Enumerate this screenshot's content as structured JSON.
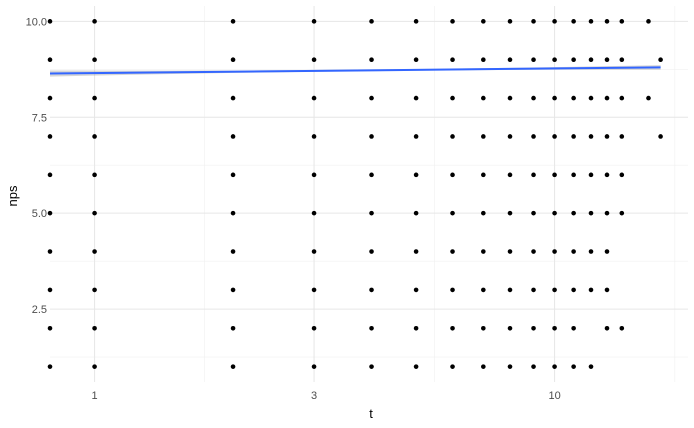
{
  "chart_data": {
    "type": "scatter",
    "title": "",
    "xlabel": "t",
    "ylabel": "nps",
    "x_scale": "log10",
    "xlim": [
      0.8,
      19.5
    ],
    "ylim": [
      0.6,
      10.4
    ],
    "x_ticks": [
      1,
      3,
      10
    ],
    "x_tick_labels": [
      "1",
      "3",
      "10"
    ],
    "y_ticks": [
      2.5,
      5.0,
      7.5,
      10.0
    ],
    "y_tick_labels": [
      "2.5",
      "5.0",
      "7.5",
      "10.0"
    ],
    "grid": true,
    "background": "#ffffff",
    "point_color": "#000000",
    "line_color": "#3366ff",
    "band_color": "#999999",
    "points": [
      [
        0.8,
        1
      ],
      [
        0.8,
        2
      ],
      [
        0.8,
        3
      ],
      [
        0.8,
        4
      ],
      [
        0.8,
        5
      ],
      [
        0.8,
        6
      ],
      [
        0.8,
        7
      ],
      [
        0.8,
        8
      ],
      [
        0.8,
        9
      ],
      [
        0.8,
        10
      ],
      [
        1,
        1
      ],
      [
        1,
        2
      ],
      [
        1,
        3
      ],
      [
        1,
        4
      ],
      [
        1,
        5
      ],
      [
        1,
        6
      ],
      [
        1,
        7
      ],
      [
        1,
        8
      ],
      [
        1,
        9
      ],
      [
        1,
        10
      ],
      [
        2,
        1
      ],
      [
        2,
        2
      ],
      [
        2,
        3
      ],
      [
        2,
        4
      ],
      [
        2,
        5
      ],
      [
        2,
        6
      ],
      [
        2,
        7
      ],
      [
        2,
        8
      ],
      [
        2,
        9
      ],
      [
        2,
        10
      ],
      [
        3,
        1
      ],
      [
        3,
        2
      ],
      [
        3,
        3
      ],
      [
        3,
        4
      ],
      [
        3,
        5
      ],
      [
        3,
        6
      ],
      [
        3,
        7
      ],
      [
        3,
        8
      ],
      [
        3,
        9
      ],
      [
        3,
        10
      ],
      [
        4,
        1
      ],
      [
        4,
        2
      ],
      [
        4,
        3
      ],
      [
        4,
        4
      ],
      [
        4,
        5
      ],
      [
        4,
        6
      ],
      [
        4,
        7
      ],
      [
        4,
        8
      ],
      [
        4,
        9
      ],
      [
        4,
        10
      ],
      [
        5,
        1
      ],
      [
        5,
        2
      ],
      [
        5,
        3
      ],
      [
        5,
        4
      ],
      [
        5,
        5
      ],
      [
        5,
        6
      ],
      [
        5,
        7
      ],
      [
        5,
        8
      ],
      [
        5,
        9
      ],
      [
        5,
        10
      ],
      [
        6,
        1
      ],
      [
        6,
        2
      ],
      [
        6,
        3
      ],
      [
        6,
        4
      ],
      [
        6,
        5
      ],
      [
        6,
        6
      ],
      [
        6,
        7
      ],
      [
        6,
        8
      ],
      [
        6,
        9
      ],
      [
        6,
        10
      ],
      [
        7,
        1
      ],
      [
        7,
        2
      ],
      [
        7,
        3
      ],
      [
        7,
        4
      ],
      [
        7,
        5
      ],
      [
        7,
        6
      ],
      [
        7,
        7
      ],
      [
        7,
        8
      ],
      [
        7,
        9
      ],
      [
        7,
        10
      ],
      [
        8,
        1
      ],
      [
        8,
        2
      ],
      [
        8,
        3
      ],
      [
        8,
        4
      ],
      [
        8,
        5
      ],
      [
        8,
        6
      ],
      [
        8,
        7
      ],
      [
        8,
        8
      ],
      [
        8,
        9
      ],
      [
        8,
        10
      ],
      [
        9,
        1
      ],
      [
        9,
        2
      ],
      [
        9,
        3
      ],
      [
        9,
        4
      ],
      [
        9,
        5
      ],
      [
        9,
        6
      ],
      [
        9,
        7
      ],
      [
        9,
        8
      ],
      [
        9,
        9
      ],
      [
        9,
        10
      ],
      [
        10,
        1
      ],
      [
        10,
        2
      ],
      [
        10,
        3
      ],
      [
        10,
        4
      ],
      [
        10,
        5
      ],
      [
        10,
        6
      ],
      [
        10,
        7
      ],
      [
        10,
        8
      ],
      [
        10,
        9
      ],
      [
        10,
        10
      ],
      [
        11,
        1
      ],
      [
        11,
        2
      ],
      [
        11,
        3
      ],
      [
        11,
        4
      ],
      [
        11,
        5
      ],
      [
        11,
        6
      ],
      [
        11,
        7
      ],
      [
        11,
        8
      ],
      [
        11,
        9
      ],
      [
        11,
        10
      ],
      [
        12,
        1
      ],
      [
        12,
        3
      ],
      [
        12,
        4
      ],
      [
        12,
        5
      ],
      [
        12,
        6
      ],
      [
        12,
        7
      ],
      [
        12,
        8
      ],
      [
        12,
        9
      ],
      [
        12,
        10
      ],
      [
        13,
        2
      ],
      [
        13,
        3
      ],
      [
        13,
        4
      ],
      [
        13,
        5
      ],
      [
        13,
        6
      ],
      [
        13,
        7
      ],
      [
        13,
        8
      ],
      [
        13,
        9
      ],
      [
        13,
        10
      ],
      [
        14,
        2
      ],
      [
        14,
        5
      ],
      [
        14,
        6
      ],
      [
        14,
        7
      ],
      [
        14,
        8
      ],
      [
        14,
        9
      ],
      [
        14,
        10
      ],
      [
        16,
        8
      ],
      [
        16,
        10
      ],
      [
        17,
        7
      ],
      [
        17,
        9
      ]
    ],
    "trend_line": {
      "method": "linear fit",
      "x": [
        0.8,
        17
      ],
      "y": [
        8.64,
        8.8
      ]
    }
  }
}
